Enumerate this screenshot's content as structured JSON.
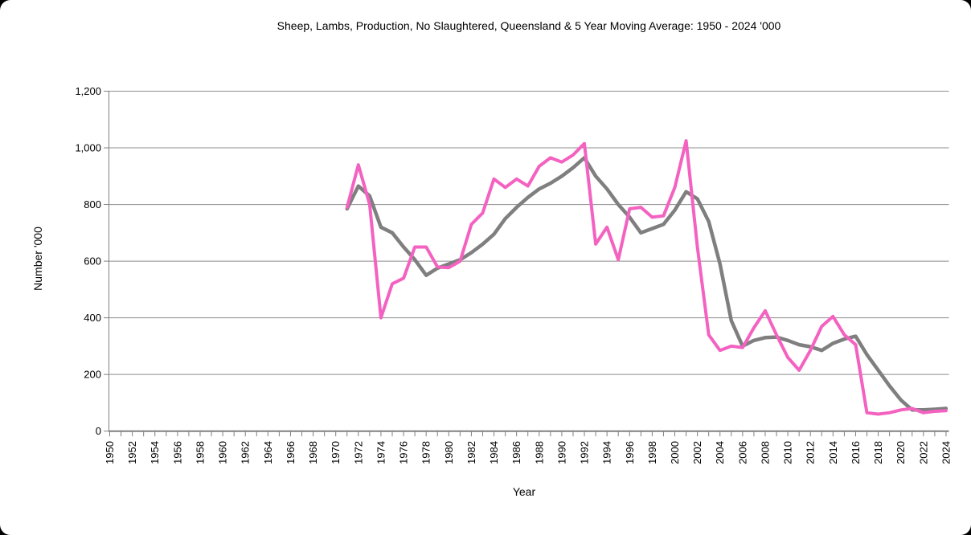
{
  "title": "Sheep, Lambs, Production, No Slaughtered, Queensland & 5 Year Moving Average: 1950 - 2024 '000",
  "chart_data": {
    "type": "line",
    "title": "Sheep, Lambs, Production, No Slaughtered, Queensland & 5 Year Moving Average: 1950 - 2024 '000",
    "xlabel": "Year",
    "ylabel": "Number '000",
    "grid": true,
    "legend_position": "none",
    "x_axis": {
      "start": 1950,
      "end": 2024,
      "minor_tick_step": 1,
      "label_step": 2,
      "labels": [
        "1950",
        "1952",
        "1954",
        "1956",
        "1958",
        "1960",
        "1962",
        "1964",
        "1966",
        "1968",
        "1970",
        "1972",
        "1974",
        "1976",
        "1978",
        "1980",
        "1982",
        "1984",
        "1986",
        "1988",
        "1990",
        "1992",
        "1994",
        "1996",
        "1998",
        "2000",
        "2002",
        "2004",
        "2006",
        "2008",
        "2010",
        "2012",
        "2014",
        "2016",
        "2018",
        "2020",
        "2022",
        "2024"
      ]
    },
    "y_axis": {
      "min": 0,
      "max": 1200,
      "step": 200,
      "tick_labels": [
        "0",
        "200",
        "400",
        "600",
        "800",
        "1,000",
        "1,200"
      ]
    },
    "series": [
      {
        "name": "No Slaughtered Queensland",
        "color": "#F462C1",
        "line_width": 4,
        "x_start": 1971,
        "values": [
          790,
          940,
          800,
          400,
          520,
          540,
          650,
          650,
          580,
          577,
          600,
          730,
          770,
          890,
          860,
          890,
          865,
          935,
          965,
          950,
          975,
          1015,
          660,
          720,
          605,
          785,
          790,
          755,
          760,
          860,
          1025,
          650,
          340,
          285,
          300,
          295,
          365,
          425,
          340,
          260,
          215,
          285,
          370,
          405,
          340,
          305,
          65,
          60,
          65,
          75,
          80,
          65,
          70,
          72
        ]
      },
      {
        "name": "5 Year Moving Average",
        "color": "#7F7F7F",
        "line_width": 4.5,
        "x_start": 1971,
        "values": [
          785,
          865,
          830,
          720,
          700,
          650,
          605,
          550,
          575,
          590,
          605,
          630,
          660,
          695,
          750,
          790,
          825,
          855,
          875,
          900,
          930,
          965,
          900,
          855,
          800,
          755,
          700,
          715,
          730,
          780,
          845,
          820,
          740,
          590,
          390,
          300,
          320,
          330,
          332,
          320,
          305,
          298,
          285,
          310,
          325,
          335,
          270,
          215,
          160,
          110,
          75,
          75,
          77,
          80
        ]
      }
    ]
  }
}
